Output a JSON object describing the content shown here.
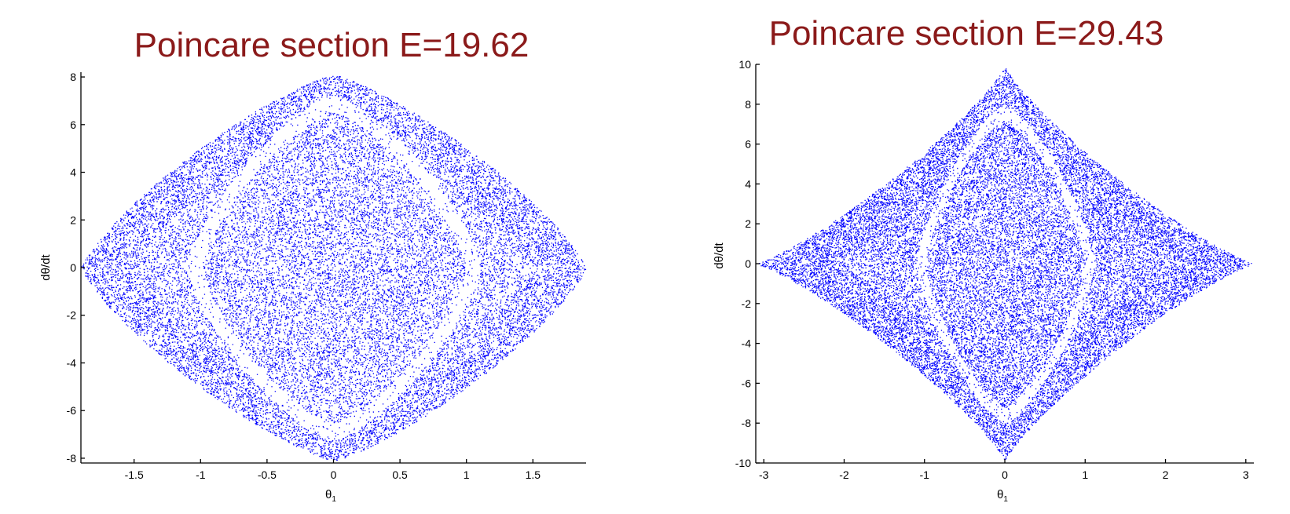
{
  "chart_data": [
    {
      "type": "scatter",
      "title": "Poincare section E=19.62",
      "xlabel": "θ",
      "xlabel_sub": "1",
      "ylabel": "dθ/dt",
      "xlim": [
        -1.9,
        1.9
      ],
      "ylim": [
        -8.2,
        8.2
      ],
      "xticks": [
        -1.5,
        -1,
        -0.5,
        0,
        0.5,
        1,
        1.5
      ],
      "xtick_labels": [
        "-1.5",
        "-1",
        "-0.5",
        "0",
        "0.5",
        "1",
        "1.5"
      ],
      "yticks": [
        -8,
        -6,
        -4,
        -2,
        0,
        2,
        4,
        6,
        8
      ],
      "ytick_labels": [
        "-8",
        "-6",
        "-4",
        "-2",
        "0",
        "2",
        "4",
        "6",
        "8"
      ],
      "point_color": "#0000ff",
      "series": [
        {
          "boundary": {
            "x_max": 1.9,
            "y_max": 8.1,
            "shape_exponent": 1.25
          },
          "gap_ring": {
            "x_max": 1.05,
            "y_max": 6.9,
            "width": 0.07
          }
        }
      ]
    },
    {
      "type": "scatter",
      "title": "Poincare section E=29.43",
      "xlabel": "θ",
      "xlabel_sub": "1",
      "ylabel": "dθ/dt",
      "xlim": [
        -3.1,
        3.1
      ],
      "ylim": [
        -10,
        10
      ],
      "xticks": [
        -3,
        -2,
        -1,
        0,
        1,
        2,
        3
      ],
      "xtick_labels": [
        "-3",
        "-2",
        "-1",
        "0",
        "1",
        "2",
        "3"
      ],
      "yticks": [
        -10,
        -8,
        -6,
        -4,
        -2,
        0,
        2,
        4,
        6,
        8,
        10
      ],
      "ytick_labels": [
        "-10",
        "-8",
        "-6",
        "-4",
        "-2",
        "0",
        "2",
        "4",
        "6",
        "8",
        "10"
      ],
      "point_color": "#0000ff",
      "series": [
        {
          "boundary": {
            "x_max": 3.1,
            "y_max": 9.9,
            "shape_exponent": 0.85
          },
          "gap_ring": {
            "x_max": 1.05,
            "y_max": 7.6,
            "width": 0.07
          }
        }
      ]
    }
  ]
}
